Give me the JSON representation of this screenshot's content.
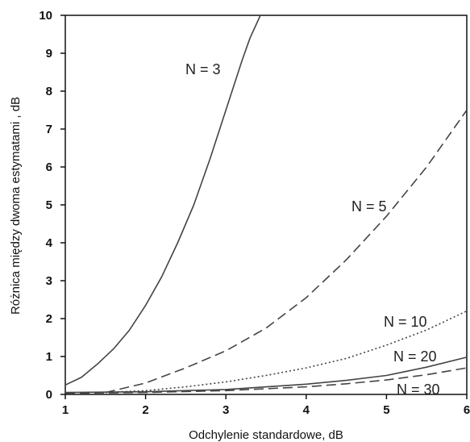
{
  "chart_data": {
    "type": "line",
    "title": "",
    "xlabel": "Odchylenie standardowe, dB",
    "ylabel": "Różnica między dwoma estymatami , dB",
    "xlim": [
      1,
      6
    ],
    "ylim": [
      0,
      10
    ],
    "xticks": [
      1,
      2,
      3,
      4,
      5,
      6
    ],
    "yticks": [
      0,
      1,
      2,
      3,
      4,
      5,
      6,
      7,
      8,
      9,
      10
    ],
    "grid": false,
    "legend": "none",
    "series": [
      {
        "name": "N = 3",
        "style": "solid",
        "x": [
          1.0,
          1.2,
          1.4,
          1.6,
          1.8,
          2.0,
          2.2,
          2.4,
          2.6,
          2.8,
          3.0,
          3.2,
          3.3,
          3.43
        ],
        "y": [
          0.25,
          0.45,
          0.8,
          1.2,
          1.7,
          2.35,
          3.1,
          4.0,
          5.0,
          6.2,
          7.5,
          8.8,
          9.4,
          10.0
        ]
      },
      {
        "name": "N = 5",
        "style": "dashed",
        "x": [
          1.5,
          2.0,
          2.5,
          3.0,
          3.5,
          4.0,
          4.5,
          5.0,
          5.5,
          6.0
        ],
        "y": [
          0.05,
          0.3,
          0.7,
          1.15,
          1.75,
          2.55,
          3.55,
          4.7,
          6.0,
          7.5
        ]
      },
      {
        "name": "N = 10",
        "style": "dotted",
        "x": [
          1.5,
          2.0,
          2.5,
          3.0,
          3.5,
          4.0,
          4.5,
          5.0,
          5.5,
          6.0
        ],
        "y": [
          0.05,
          0.1,
          0.2,
          0.33,
          0.5,
          0.7,
          0.95,
          1.3,
          1.7,
          2.2
        ]
      },
      {
        "name": "N = 20",
        "style": "solid",
        "x": [
          1.0,
          2.0,
          3.0,
          4.0,
          4.5,
          5.0,
          5.5,
          6.0
        ],
        "y": [
          0.05,
          0.07,
          0.13,
          0.27,
          0.37,
          0.5,
          0.72,
          0.98
        ]
      },
      {
        "name": "N = 30",
        "style": "dashed",
        "x": [
          1.0,
          2.0,
          3.0,
          4.0,
          4.5,
          5.0,
          5.5,
          6.0
        ],
        "y": [
          0.03,
          0.05,
          0.1,
          0.2,
          0.28,
          0.38,
          0.52,
          0.7
        ]
      }
    ]
  },
  "colors": {
    "line": "#444444",
    "axis": "#111111"
  }
}
